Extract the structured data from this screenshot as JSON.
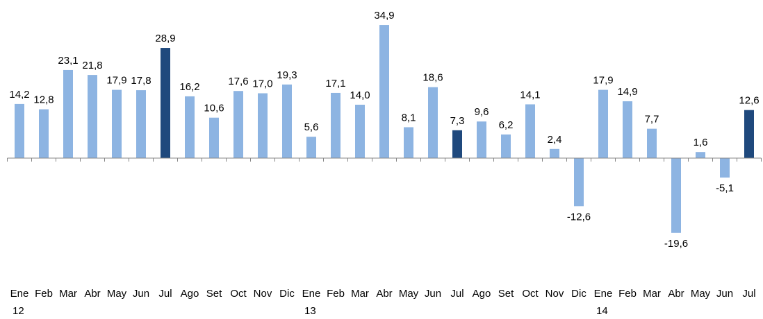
{
  "chart_data": {
    "type": "bar",
    "categories": [
      "Ene",
      "Feb",
      "Mar",
      "Abr",
      "May",
      "Jun",
      "Jul",
      "Ago",
      "Set",
      "Oct",
      "Nov",
      "Dic",
      "Ene",
      "Feb",
      "Mar",
      "Abr",
      "May",
      "Jun",
      "Jul",
      "Ago",
      "Set",
      "Oct",
      "Nov",
      "Dic",
      "Ene",
      "Feb",
      "Mar",
      "Abr",
      "May",
      "Jun",
      "Jul"
    ],
    "year_labels": [
      "12",
      null,
      null,
      null,
      null,
      null,
      null,
      null,
      null,
      null,
      null,
      null,
      "13",
      null,
      null,
      null,
      null,
      null,
      null,
      null,
      null,
      null,
      null,
      null,
      "14",
      null,
      null,
      null,
      null,
      null,
      null
    ],
    "values": [
      14.2,
      12.8,
      23.1,
      21.8,
      17.9,
      17.8,
      28.9,
      16.2,
      10.6,
      17.6,
      17.0,
      19.3,
      5.6,
      17.1,
      14.0,
      34.9,
      8.1,
      18.6,
      7.3,
      9.6,
      6.2,
      14.1,
      2.4,
      -12.6,
      17.9,
      14.9,
      7.7,
      -19.6,
      1.6,
      -5.1,
      12.6
    ],
    "value_labels": [
      "14,2",
      "12,8",
      "23,1",
      "21,8",
      "17,9",
      "17,8",
      "28,9",
      "16,2",
      "10,6",
      "17,6",
      "17,0",
      "19,3",
      "5,6",
      "17,1",
      "14,0",
      "34,9",
      "8,1",
      "18,6",
      "7,3",
      "9,6",
      "6,2",
      "14,1",
      "2,4",
      "-12,6",
      "17,9",
      "14,9",
      "7,7",
      "-19,6",
      "1,6",
      "-5,1",
      "12,6"
    ],
    "colors": [
      "#8db4e2",
      "#8db4e2",
      "#8db4e2",
      "#8db4e2",
      "#8db4e2",
      "#8db4e2",
      "#1f497d",
      "#8db4e2",
      "#8db4e2",
      "#8db4e2",
      "#8db4e2",
      "#8db4e2",
      "#8db4e2",
      "#8db4e2",
      "#8db4e2",
      "#8db4e2",
      "#8db4e2",
      "#8db4e2",
      "#1f497d",
      "#8db4e2",
      "#8db4e2",
      "#8db4e2",
      "#8db4e2",
      "#8db4e2",
      "#8db4e2",
      "#8db4e2",
      "#8db4e2",
      "#8db4e2",
      "#8db4e2",
      "#8db4e2",
      "#1f497d"
    ],
    "ylim": [
      -25,
      40
    ]
  }
}
